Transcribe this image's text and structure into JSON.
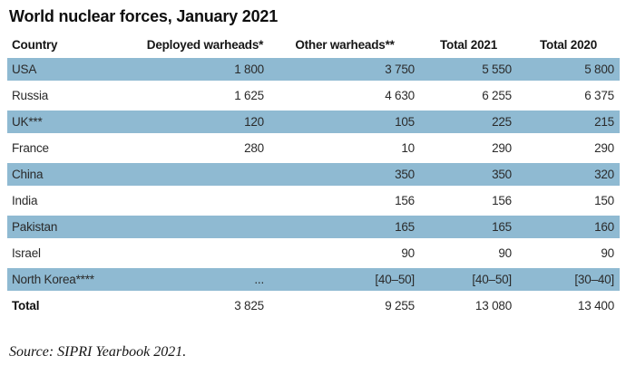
{
  "page_title": "World nuclear forces, January 2021",
  "source_note": "Source: SIPRI Yearbook 2021.",
  "colors": {
    "row_highlight": "#8fbad2",
    "background": "#ffffff",
    "text": "#2a2a2a"
  },
  "chart_data": {
    "type": "table",
    "title": "World nuclear forces, January 2021",
    "columns": [
      "Country",
      "Deployed warheads*",
      "Other warheads**",
      "Total 2021",
      "Total 2020"
    ],
    "rows": [
      {
        "country": "USA",
        "deployed": "1 800",
        "other": "3 750",
        "total_2021": "5 550",
        "total_2020": "5 800",
        "highlighted": true
      },
      {
        "country": "Russia",
        "deployed": "1 625",
        "other": "4 630",
        "total_2021": "6 255",
        "total_2020": "6 375",
        "highlighted": false
      },
      {
        "country": "UK***",
        "deployed": "120",
        "other": "105",
        "total_2021": "225",
        "total_2020": "215",
        "highlighted": true
      },
      {
        "country": "France",
        "deployed": "280",
        "other": "10",
        "total_2021": "290",
        "total_2020": "290",
        "highlighted": false
      },
      {
        "country": "China",
        "deployed": "",
        "other": "350",
        "total_2021": "350",
        "total_2020": "320",
        "highlighted": true
      },
      {
        "country": "India",
        "deployed": "",
        "other": "156",
        "total_2021": "156",
        "total_2020": "150",
        "highlighted": false
      },
      {
        "country": "Pakistan",
        "deployed": "",
        "other": "165",
        "total_2021": "165",
        "total_2020": "160",
        "highlighted": true
      },
      {
        "country": "Israel",
        "deployed": "",
        "other": "90",
        "total_2021": "90",
        "total_2020": "90",
        "highlighted": false
      },
      {
        "country": "North Korea****",
        "deployed": "...",
        "other": "[40–50]",
        "total_2021": "[40–50]",
        "total_2020": "[30–40]",
        "highlighted": true
      },
      {
        "country": "Total",
        "deployed": "3 825",
        "other": "9 255",
        "total_2021": "13 080",
        "total_2020": "13 400",
        "highlighted": false
      }
    ],
    "source": "Source: SIPRI Yearbook 2021.",
    "legend_position": "none",
    "grid": false
  }
}
